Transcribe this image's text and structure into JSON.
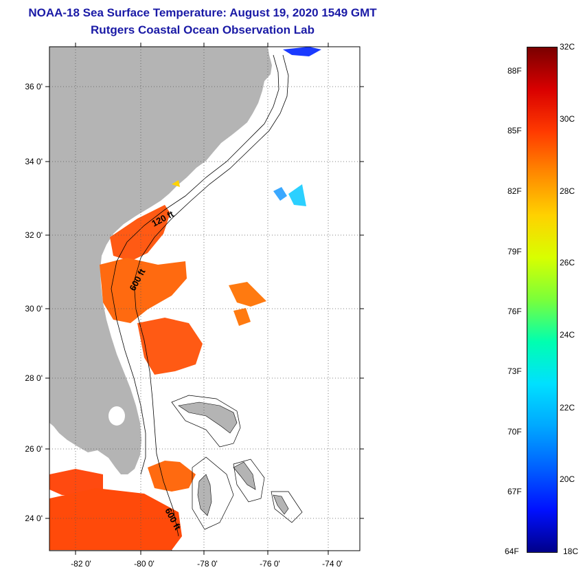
{
  "title": {
    "line1": "NOAA-18 Sea Surface Temperature:  August 19, 2020 1549 GMT",
    "line2": "Rutgers Coastal Ocean Observation Lab"
  },
  "map": {
    "lat_labels": [
      "36 0'",
      "34 0'",
      "32 0'",
      "30 0'",
      "28 0'",
      "26 0'",
      "24 0'"
    ],
    "lon_labels": [
      "-82 0'",
      "-80 0'",
      "-78 0'",
      "-76 0'",
      "-74 0'"
    ],
    "contour_labels": [
      "120 ft",
      "600 ft",
      "600 ft"
    ],
    "colors": {
      "land": "#b4b4b4",
      "ocean": "#ffffff",
      "warm_sst": "#ff5a14"
    }
  },
  "colorbar": {
    "celsius": [
      "32C",
      "30C",
      "28C",
      "26C",
      "24C",
      "22C",
      "20C",
      "18C"
    ],
    "fahrenheit": [
      "88F",
      "85F",
      "82F",
      "79F",
      "76F",
      "73F",
      "70F",
      "67F",
      "64F"
    ],
    "colors": [
      "#7a0000",
      "#d90000",
      "#ff3a00",
      "#ff8a00",
      "#ffd200",
      "#d8ff00",
      "#7aff3a",
      "#00ffb0",
      "#00e0ff",
      "#00a8ff",
      "#0060ff",
      "#0010ff",
      "#00008a"
    ]
  }
}
